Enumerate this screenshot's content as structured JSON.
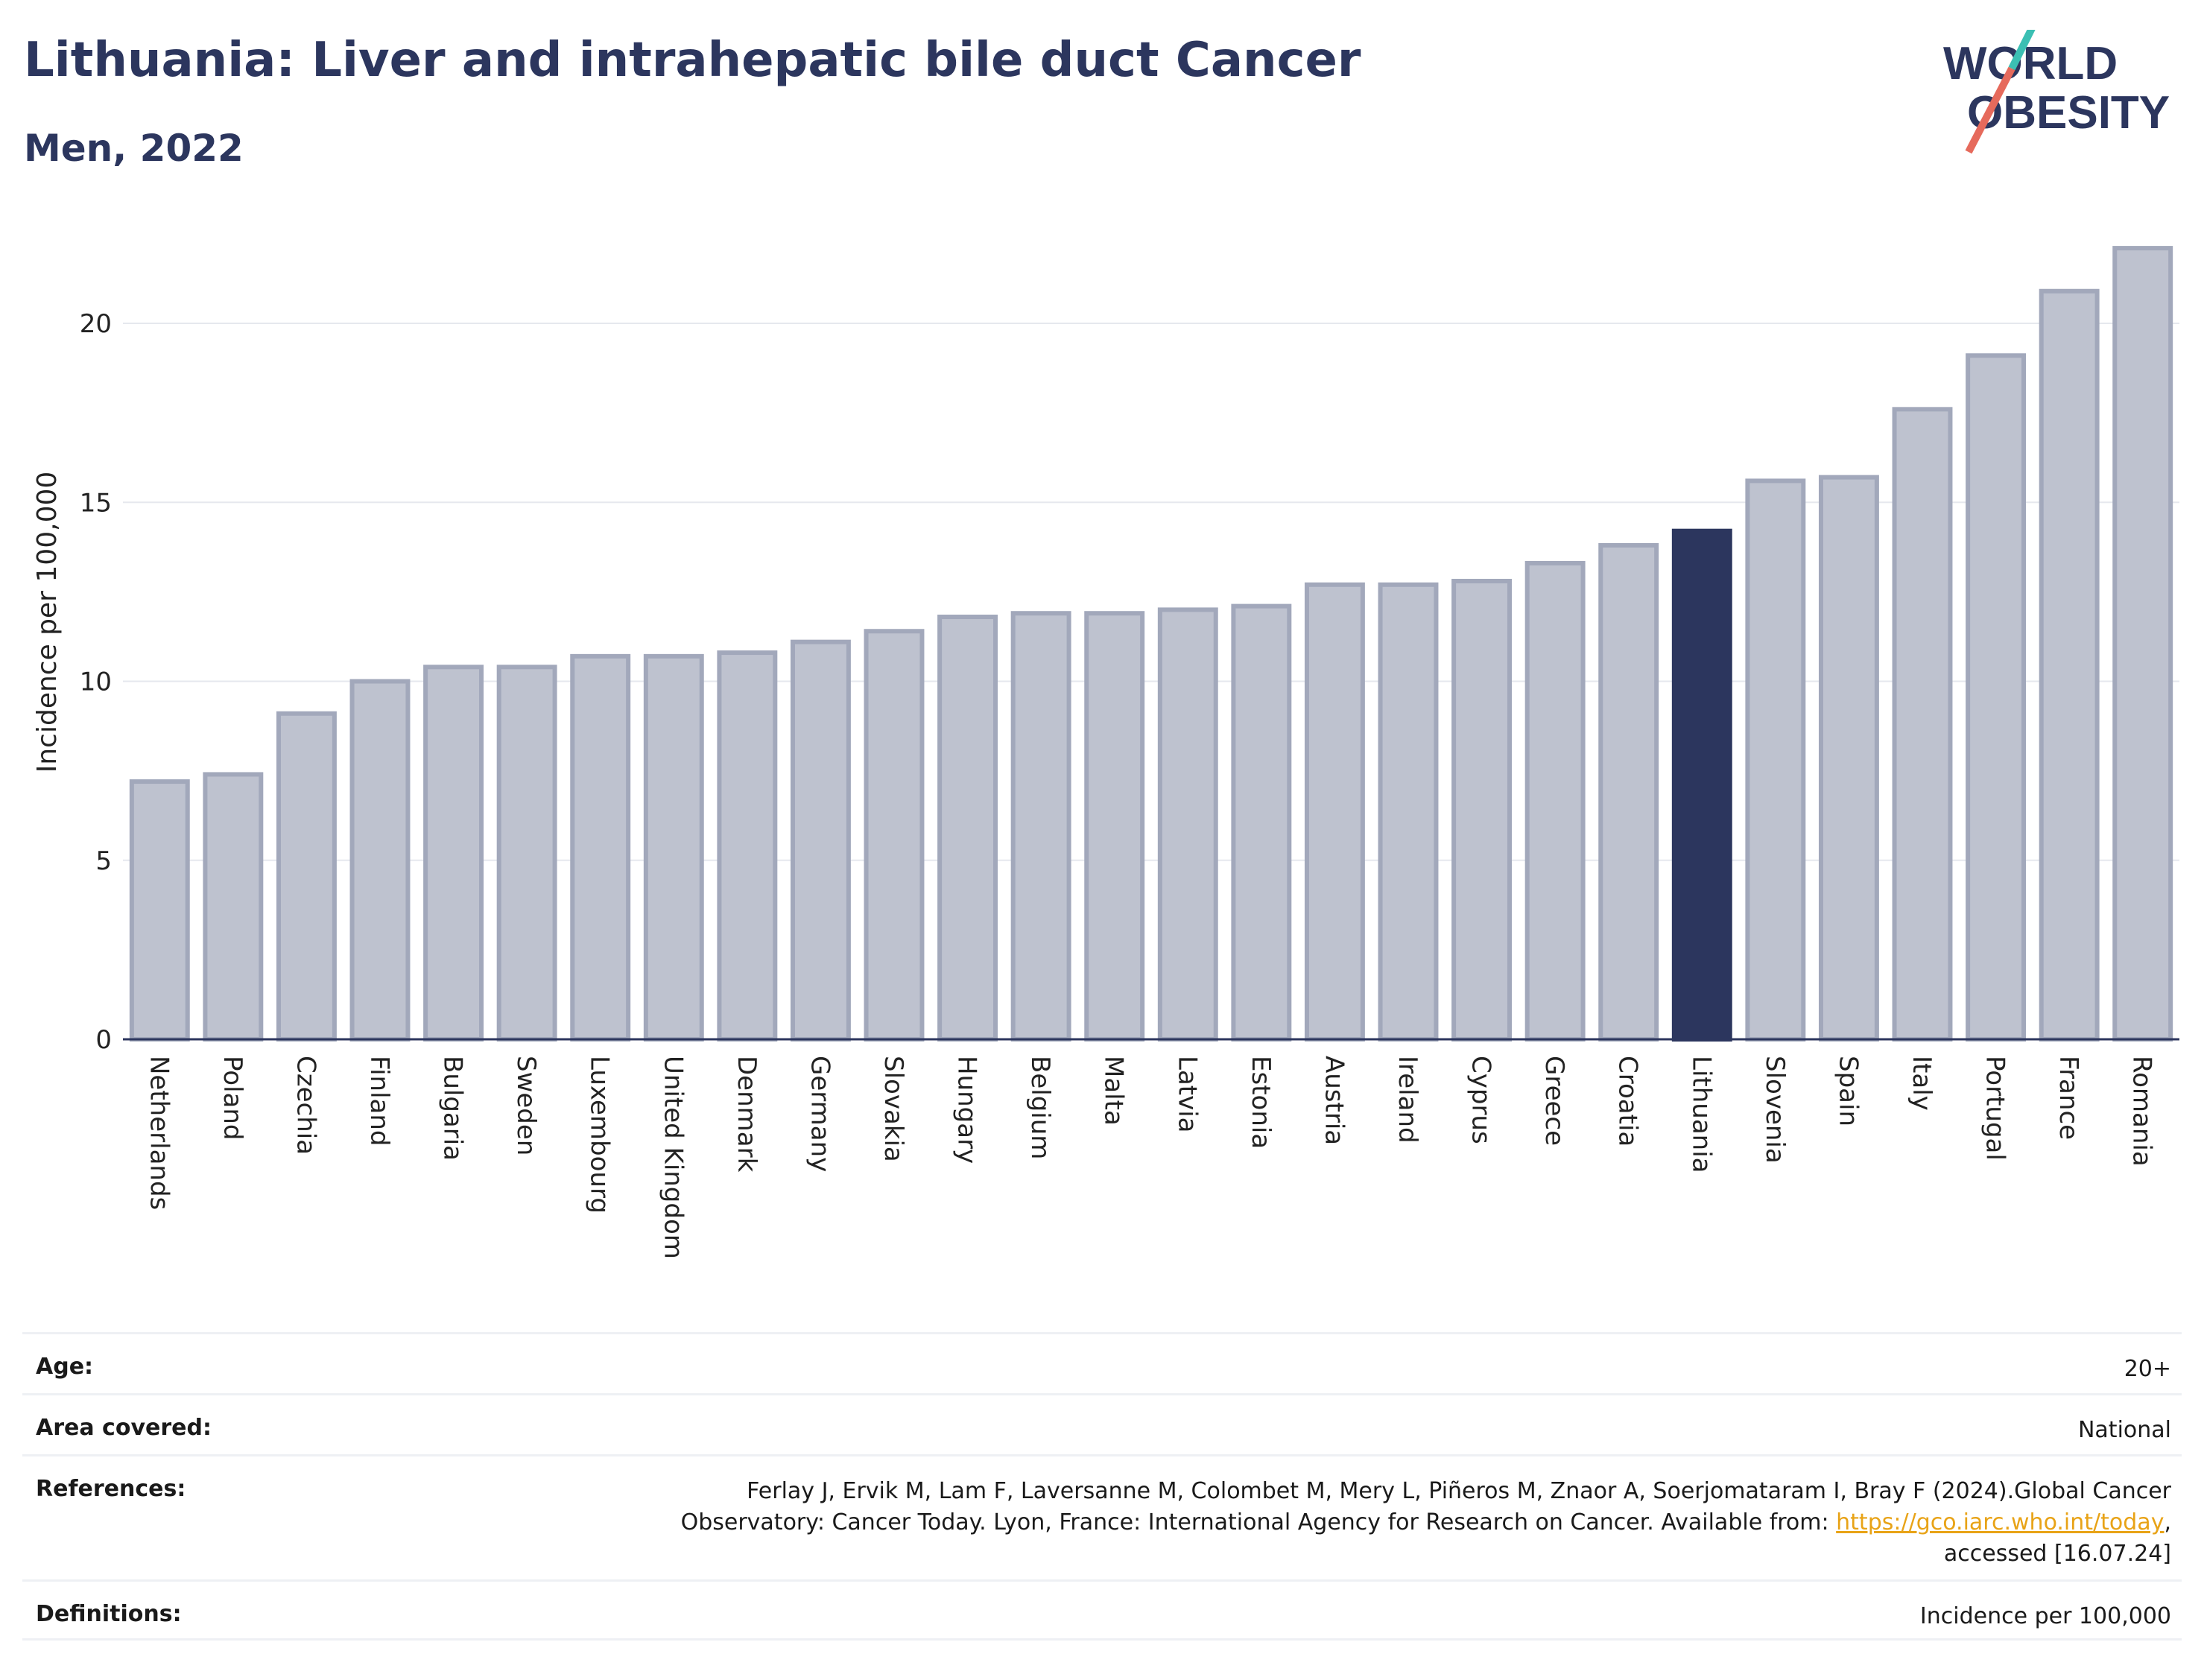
{
  "header": {
    "title": "Lithuania: Liver and intrahepatic bile duct Cancer",
    "subtitle": "Men, 2022"
  },
  "logo": {
    "line1": "WORLD",
    "line2": "OBESITY"
  },
  "colors": {
    "bar": "#bec2cf",
    "bar_border": "#a2a8bb",
    "highlight": "#2c365e",
    "accent": "#e8a317"
  },
  "chart_data": {
    "type": "bar",
    "ylabel": "Incidence per 100,000",
    "ylim": [
      0,
      22.5
    ],
    "yticks": [
      0,
      5,
      10,
      15,
      20
    ],
    "grid": true,
    "highlight": "Lithuania",
    "categories": [
      "Netherlands",
      "Poland",
      "Czechia",
      "Finland",
      "Bulgaria",
      "Sweden",
      "Luxembourg",
      "United Kingdom",
      "Denmark",
      "Germany",
      "Slovakia",
      "Hungary",
      "Belgium",
      "Malta",
      "Latvia",
      "Estonia",
      "Austria",
      "Ireland",
      "Cyprus",
      "Greece",
      "Croatia",
      "Lithuania",
      "Slovenia",
      "Spain",
      "Italy",
      "Portugal",
      "France",
      "Romania"
    ],
    "values": [
      7.2,
      7.4,
      9.1,
      10.0,
      10.4,
      10.4,
      10.7,
      10.7,
      10.8,
      11.1,
      11.4,
      11.8,
      11.9,
      11.9,
      12.0,
      12.1,
      12.7,
      12.7,
      12.8,
      13.3,
      13.8,
      14.2,
      15.6,
      15.7,
      17.6,
      19.1,
      20.9,
      22.1
    ]
  },
  "meta": {
    "age_label": "Age:",
    "age_value": "20+",
    "area_label": "Area covered:",
    "area_value": "National",
    "ref_label": "References:",
    "ref_line1": "Ferlay J, Ervik M, Lam F, Laversanne M, Colombet M, Mery L, Piñeros M, Znaor A, Soerjomataram I, Bray F (2024).Global Cancer",
    "ref_line2": "Observatory: Cancer Today. Lyon, France: International Agency for Research on Cancer. Available from: ",
    "ref_link": "https://gco.iarc.who.int/today",
    "ref_line2_end": ",",
    "ref_line3": "accessed [16.07.24]",
    "def_label": "Definitions:",
    "def_value": "Incidence per 100,000"
  }
}
